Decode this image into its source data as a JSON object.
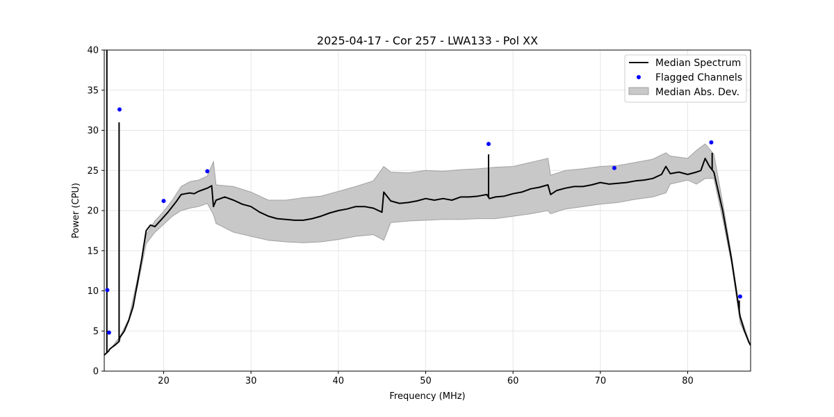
{
  "chart_data": {
    "type": "line",
    "title": "2025-04-17 - Cor 257 - LWA133 - Pol XX",
    "xlabel": "Frequency (MHz)",
    "ylabel": "Power (CPU)",
    "xlim": [
      13.2,
      87.2
    ],
    "ylim": [
      0,
      40
    ],
    "x_ticks": [
      20,
      30,
      40,
      50,
      60,
      70,
      80
    ],
    "y_ticks": [
      0,
      5,
      10,
      15,
      20,
      25,
      30,
      35,
      40
    ],
    "x_tick_labels": [
      "20",
      "30",
      "40",
      "50",
      "60",
      "70",
      "80"
    ],
    "y_tick_labels": [
      "0",
      "5",
      "10",
      "15",
      "20",
      "25",
      "30",
      "35",
      "40"
    ],
    "grid": true,
    "legend_position": "top-right",
    "legend": [
      "Median Spectrum",
      "Flagged Channels",
      "Median Abs. Dev."
    ],
    "colors": {
      "median": "#000000",
      "flagged": "#0000ff",
      "mad_fill": "#c8c8c8",
      "mad_edge": "#a0a0a0",
      "grid": "#e6e6e6"
    },
    "series": [
      {
        "name": "Median Spectrum",
        "x": [
          13.2,
          13.6,
          13.7,
          13.8,
          14,
          14.5,
          14.9,
          15,
          15.5,
          16,
          16.5,
          17,
          17.5,
          18,
          18.5,
          19,
          19.5,
          20,
          20.5,
          21,
          21.5,
          22,
          22.5,
          23,
          23.5,
          24,
          24.5,
          25,
          25.5,
          25.7,
          26,
          27,
          28,
          29,
          30,
          31,
          32,
          33,
          34,
          35,
          36,
          37,
          38,
          39,
          40,
          41,
          42,
          43,
          44,
          45,
          45.2,
          46,
          47,
          48,
          49,
          50,
          51,
          52,
          53,
          54,
          55,
          56,
          57,
          57.3,
          58,
          59,
          60,
          61,
          62,
          63,
          64,
          64.3,
          65,
          66,
          67,
          68,
          69,
          70,
          71,
          72,
          73,
          74,
          75,
          76,
          77,
          77.5,
          78,
          79,
          80,
          81,
          81.5,
          82,
          82.5,
          83,
          84,
          85,
          85.5,
          86,
          86.5,
          87,
          87.2
        ],
        "y": [
          2,
          2.4,
          2.5,
          2.7,
          2.9,
          3.3,
          3.7,
          4.2,
          5,
          6.3,
          8,
          11,
          14,
          17.5,
          18.2,
          18,
          18.6,
          19.2,
          19.8,
          20.5,
          21.2,
          22,
          22.1,
          22.2,
          22.1,
          22.4,
          22.6,
          22.8,
          23.1,
          20.5,
          21.3,
          21.7,
          21.3,
          20.8,
          20.5,
          19.8,
          19.3,
          19,
          18.9,
          18.8,
          18.8,
          19,
          19.3,
          19.7,
          20,
          20.2,
          20.5,
          20.5,
          20.3,
          19.8,
          22.3,
          21.2,
          20.9,
          21,
          21.2,
          21.5,
          21.3,
          21.5,
          21.3,
          21.7,
          21.7,
          21.8,
          22,
          21.5,
          21.7,
          21.8,
          22.1,
          22.3,
          22.7,
          22.9,
          23.2,
          22,
          22.5,
          22.8,
          23,
          23,
          23.2,
          23.5,
          23.3,
          23.4,
          23.5,
          23.7,
          23.8,
          24,
          24.5,
          25.5,
          24.6,
          24.8,
          24.5,
          24.8,
          25,
          26.5,
          25.5,
          24.8,
          20,
          14,
          10.5,
          6.8,
          5,
          3.6,
          3.2
        ],
        "spikes": [
          {
            "x": 13.5,
            "y": 40
          },
          {
            "x": 14.9,
            "y": 31
          },
          {
            "x": 57.2,
            "y": 27
          },
          {
            "x": 82.8,
            "y": 27.2
          },
          {
            "x": 85.9,
            "y": 8.8
          }
        ]
      },
      {
        "name": "Flagged Channels",
        "x": [
          13.55,
          13.75,
          14.95,
          20,
          25,
          57.2,
          71.6,
          82.7,
          86
        ],
        "y": [
          10.1,
          4.8,
          32.6,
          21.2,
          24.9,
          28.3,
          25.3,
          28.5,
          9.3
        ]
      },
      {
        "name": "Median Abs. Dev.",
        "x": [
          13.2,
          14,
          15,
          16,
          17,
          18,
          19,
          20,
          21,
          22,
          23,
          24,
          25,
          25.7,
          26,
          28,
          30,
          32,
          34,
          36,
          38,
          40,
          42,
          44,
          45.2,
          46,
          48,
          50,
          52,
          54,
          56,
          58,
          60,
          62,
          64,
          64.3,
          66,
          68,
          70,
          72,
          74,
          76,
          77.5,
          78,
          80,
          81,
          82,
          83,
          84,
          85,
          86,
          87.2
        ],
        "upper": [
          2,
          2.9,
          4.3,
          6.5,
          11.5,
          17,
          18.7,
          19.9,
          21.3,
          23,
          23.6,
          23.8,
          24.3,
          26.1,
          23.2,
          23,
          22.3,
          21.3,
          21.3,
          21.6,
          21.8,
          22.4,
          23,
          23.7,
          25.5,
          24.8,
          24.7,
          25,
          24.9,
          25.1,
          25.2,
          25.4,
          25.5,
          26,
          26.5,
          24.4,
          25,
          25.2,
          25.5,
          25.6,
          26,
          26.4,
          27.2,
          26.8,
          26.5,
          27.5,
          28.3,
          27,
          21,
          14.5,
          7,
          3.2
        ],
        "lower": [
          2,
          2.9,
          4.1,
          6.2,
          10.5,
          15.9,
          17.3,
          18.3,
          19.3,
          20,
          20.3,
          20.5,
          20.9,
          19.5,
          18.4,
          17.3,
          16.8,
          16.3,
          16.1,
          16,
          16.1,
          16.4,
          16.8,
          17,
          16.3,
          18.5,
          18.7,
          18.8,
          18.9,
          18.9,
          19,
          19,
          19.3,
          19.6,
          20,
          19.6,
          20.2,
          20.5,
          20.8,
          21,
          21.4,
          21.7,
          22.2,
          23.3,
          23.8,
          23.3,
          24,
          24,
          19,
          13.5,
          6,
          3.2
        ]
      }
    ]
  }
}
